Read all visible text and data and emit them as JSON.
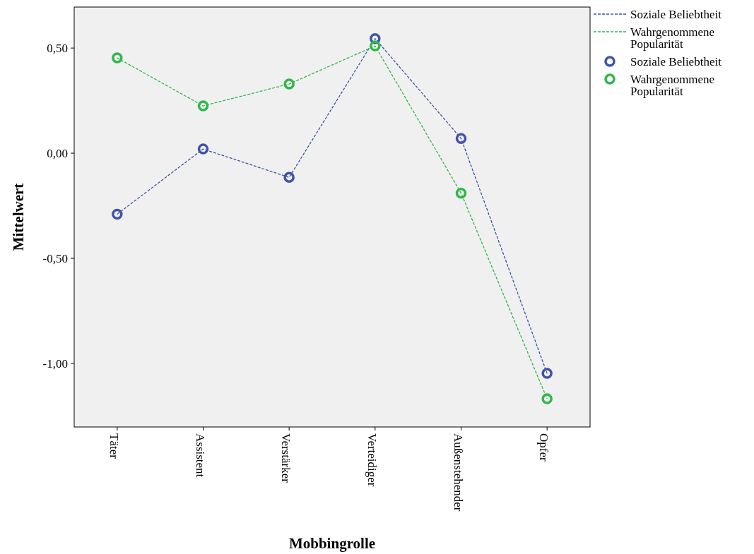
{
  "chart_data": {
    "type": "line",
    "xlabel": "Mobbingrolle",
    "ylabel": "Mittelwert",
    "categories": [
      "Täter",
      "Assistent",
      "Verstärker",
      "Verteidiger",
      "Außenstehender",
      "Opfer"
    ],
    "series": [
      {
        "name": "Soziale Beliebtheit",
        "color": "#3f54a8",
        "values": [
          -0.29,
          0.02,
          -0.115,
          0.545,
          0.07,
          -1.047
        ]
      },
      {
        "name": "Wahrgenommene Popularität",
        "color": "#2eb84a",
        "values": [
          0.453,
          0.225,
          0.329,
          0.51,
          -0.19,
          -1.168
        ]
      }
    ],
    "ylim": [
      -1.302,
      0.695
    ],
    "yticks": [
      {
        "value": 0.5,
        "label": "0,50"
      },
      {
        "value": 0,
        "label": "0,00"
      },
      {
        "value": -0.5,
        "label": "-0,50"
      },
      {
        "value": -1,
        "label": "-1,00"
      }
    ],
    "marker": "circle",
    "line_style": "dashed",
    "legend": "top right",
    "grid": false
  }
}
